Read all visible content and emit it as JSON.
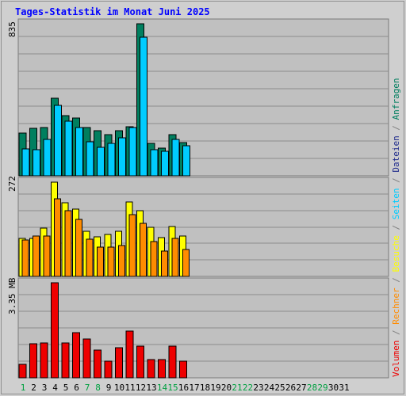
{
  "chart_data": [
    {
      "type": "bar",
      "title": "Tages-Statistik im Monat Juni 2025",
      "panel": "requests",
      "y_max_label": "835",
      "ylim": [
        0,
        835
      ],
      "categories": [
        "1",
        "2",
        "3",
        "4",
        "5",
        "6",
        "7",
        "8",
        "9",
        "10",
        "11",
        "12",
        "13",
        "14",
        "15",
        "16",
        "17",
        "18",
        "19",
        "20",
        "21",
        "22",
        "23",
        "24",
        "25",
        "26",
        "27",
        "28",
        "29",
        "30",
        "31"
      ],
      "weekend_days": [
        "1",
        "7",
        "8",
        "14",
        "15",
        "21",
        "22",
        "28",
        "29"
      ],
      "series": [
        {
          "name": "Anfragen",
          "color": "#007f5f",
          "values": [
            233,
            262,
            266,
            428,
            331,
            317,
            264,
            248,
            227,
            248,
            271,
            835,
            178,
            151,
            225,
            183,
            null,
            null,
            null,
            null,
            null,
            null,
            null,
            null,
            null,
            null,
            null,
            null,
            null,
            null,
            null
          ]
        },
        {
          "name": "Dateien",
          "color": "#1e2a8c",
          "values": [
            null,
            null,
            null,
            null,
            null,
            null,
            null,
            null,
            null,
            null,
            null,
            null,
            null,
            null,
            null,
            null,
            null,
            null,
            null,
            null,
            null,
            null,
            null,
            null,
            null,
            null,
            null,
            null,
            null,
            null,
            null
          ]
        },
        {
          "name": "Seiten",
          "color": "#00ccff",
          "values": [
            148,
            143,
            202,
            385,
            301,
            265,
            189,
            158,
            178,
            207,
            265,
            762,
            143,
            133,
            199,
            165,
            null,
            null,
            null,
            null,
            null,
            null,
            null,
            null,
            null,
            null,
            null,
            null,
            null,
            null,
            null
          ]
        }
      ]
    },
    {
      "type": "bar",
      "panel": "visits",
      "y_max_label": "272",
      "ylim": [
        0,
        272
      ],
      "categories": [
        "1",
        "2",
        "3",
        "4",
        "5",
        "6",
        "7",
        "8",
        "9",
        "10",
        "11",
        "12",
        "13",
        "14",
        "15",
        "16",
        "17",
        "18",
        "19",
        "20",
        "21",
        "22",
        "23",
        "24",
        "25",
        "26",
        "27",
        "28",
        "29",
        "30",
        "31"
      ],
      "series": [
        {
          "name": "Besuche",
          "color": "#ffff00",
          "values": [
            109,
            109,
            139,
            272,
            213,
            195,
            131,
            115,
            121,
            131,
            214,
            190,
            142,
            113,
            144,
            116,
            null,
            null,
            null,
            null,
            null,
            null,
            null,
            null,
            null,
            null,
            null,
            null,
            null,
            null,
            null
          ]
        },
        {
          "name": "Rechner",
          "color": "#ff8c00",
          "values": [
            105,
            116,
            117,
            225,
            190,
            165,
            107,
            84,
            84,
            88,
            178,
            152,
            100,
            72,
            110,
            78,
            null,
            null,
            null,
            null,
            null,
            null,
            null,
            null,
            null,
            null,
            null,
            null,
            null,
            null,
            null
          ]
        }
      ]
    },
    {
      "type": "bar",
      "panel": "volume",
      "y_max_label": "3.35 MB",
      "ylim": [
        0,
        3.35
      ],
      "categories": [
        "1",
        "2",
        "3",
        "4",
        "5",
        "6",
        "7",
        "8",
        "9",
        "10",
        "11",
        "12",
        "13",
        "14",
        "15",
        "16",
        "17",
        "18",
        "19",
        "20",
        "21",
        "22",
        "23",
        "24",
        "25",
        "26",
        "27",
        "28",
        "29",
        "30",
        "31"
      ],
      "series": [
        {
          "name": "Volumen",
          "color": "#ee0000",
          "values": [
            0.47,
            1.2,
            1.23,
            3.35,
            1.23,
            1.58,
            1.37,
            0.97,
            0.6,
            1.07,
            1.66,
            1.13,
            0.65,
            0.65,
            1.11,
            0.58,
            null,
            null,
            null,
            null,
            null,
            null,
            null,
            null,
            null,
            null,
            null,
            null,
            null,
            null,
            null
          ]
        }
      ]
    }
  ],
  "colors": {
    "plot_bg": "#c0c0c0",
    "grid": "#8c8c8c",
    "title": "#0000ff",
    "weekday_label": "#000000",
    "weekend_label": "#00a040",
    "separator": "#808080"
  }
}
